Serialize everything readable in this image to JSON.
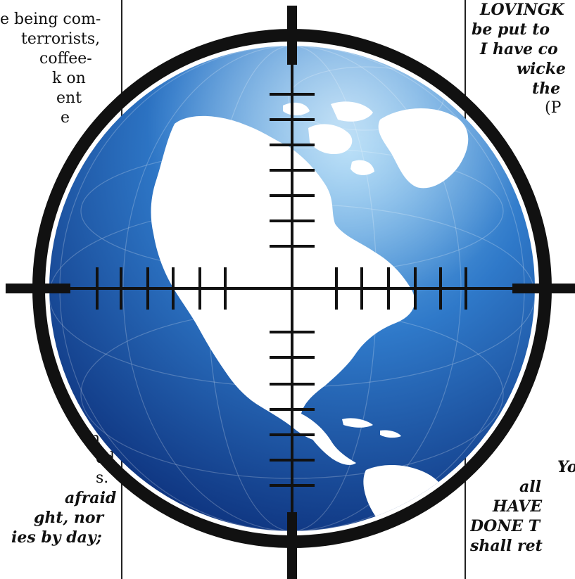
{
  "left_column": {
    "top_lines": [
      "e being com-",
      "terrorists,",
      "coffee-",
      "k  on",
      "ent",
      "e"
    ],
    "bottom_lines": [
      "n",
      "ed",
      "s."
    ],
    "bottom_italic_lines": [
      "afraid",
      "ght,  nor",
      "ies by day;"
    ]
  },
  "right_column": {
    "top_lines": [
      "LOVINGK",
      "be put to",
      "I have co",
      "wicke",
      "the",
      "(P"
    ],
    "bottom_lines": [
      "Yo",
      "all",
      "HAVE",
      "DONE T",
      "shall  ret"
    ]
  },
  "graphic": {
    "name": "globe-in-crosshairs",
    "colors": {
      "ocean_light": "#7ec3f0",
      "ocean_mid": "#2f79c9",
      "ocean_dark": "#0c2f7a",
      "land": "#ffffff",
      "reticle": "#111111"
    }
  }
}
